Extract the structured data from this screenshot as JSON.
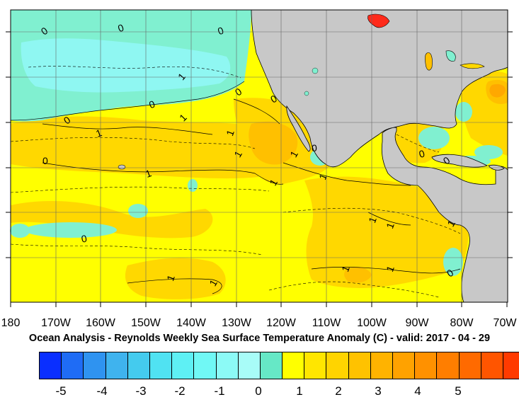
{
  "title": "Ocean Analysis - Reynolds Weekly Sea Surface Temperature Anomaly (C) - valid: 2017 - 04 - 29",
  "longitude_labels": [
    "180",
    "170W",
    "160W",
    "150W",
    "140W",
    "130W",
    "120W",
    "110W",
    "100W",
    "90W",
    "80W",
    "70W"
  ],
  "colorbar": {
    "labels": [
      "-5",
      "-4",
      "-3",
      "-2",
      "-1",
      "0",
      "1",
      "2",
      "3",
      "4",
      "5"
    ],
    "colors": [
      "#0a2fff",
      "#1f6cf5",
      "#2f93f0",
      "#3fb3ee",
      "#44cbee",
      "#50e2f2",
      "#5ef0f4",
      "#70f8f5",
      "#8cfaf6",
      "#a8fcf8",
      "#66e8c6",
      "#ffff00",
      "#ffe600",
      "#ffd400",
      "#ffc200",
      "#ffb300",
      "#ffa200",
      "#ff9100",
      "#ff7e00",
      "#ff6a00",
      "#ff5500",
      "#ff3a00"
    ]
  },
  "map_colors": {
    "land": "#c8c8c8",
    "neg_light": "#80f0d0",
    "neg_mid": "#66e8c6",
    "neg_deep": "#8ff7f2",
    "pos_0": "#ffff00",
    "pos_1": "#ffd800",
    "pos_2": "#ffc000",
    "pos_3": "#ff9a00",
    "red_lakes": "#ff2a1a"
  },
  "contour_labels": [
    "0",
    "0",
    "0",
    "0",
    "0",
    "0",
    "0",
    "0",
    "0",
    "0",
    "0",
    "0",
    "0",
    "1",
    "1",
    "1",
    "1",
    "1",
    "1",
    "1",
    "1",
    "1",
    "1",
    "1",
    "1",
    "1",
    "1",
    "1",
    "1"
  ]
}
